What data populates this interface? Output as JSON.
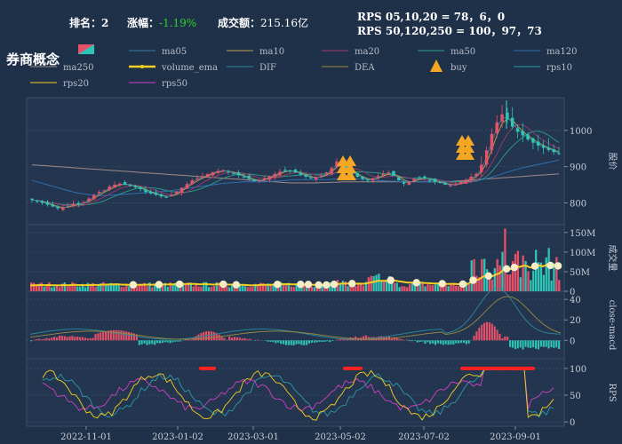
{
  "header": {
    "rank_label": "排名：",
    "rank_value": "2",
    "change_label": "涨幅：",
    "change_value": "-1.19%",
    "turnover_label": "成交额：",
    "turnover_value": "215.16亿",
    "rps_short": "RPS 05,10,20 = 78，6，0",
    "rps_long": "RPS 50,120,250 = 100，97，73"
  },
  "title": "券商概念",
  "colors": {
    "background": "#1f3049",
    "up": "#e8506a",
    "down": "#2ec4b6",
    "volume_ema": "#f5d020",
    "buy": "#f5a623"
  },
  "chart_data": {
    "type": "line",
    "legend": [
      {
        "name": "ma05",
        "color": "#3a7ca5",
        "kind": "line"
      },
      {
        "name": "ma10",
        "color": "#b9a44c",
        "kind": "line"
      },
      {
        "name": "ma20",
        "color": "#9b3c6e",
        "kind": "line"
      },
      {
        "name": "ma50",
        "color": "#2e9e8a",
        "kind": "line"
      },
      {
        "name": "ma120",
        "color": "#2f6fb0",
        "kind": "line"
      },
      {
        "name": "ma250",
        "color": "#a08a8a",
        "kind": "line"
      },
      {
        "name": "volume_ema",
        "color": "#f5d020",
        "kind": "dots"
      },
      {
        "name": "DIF",
        "color": "#2a8a9a",
        "kind": "line"
      },
      {
        "name": "DEA",
        "color": "#9a8a40",
        "kind": "line"
      },
      {
        "name": "buy",
        "color": "#f5a623",
        "kind": "triangle"
      },
      {
        "name": "rps10",
        "color": "#2a9aa8",
        "kind": "line"
      },
      {
        "name": "rps20",
        "color": "#f5d020",
        "kind": "line"
      },
      {
        "name": "rps50",
        "color": "#d040c0",
        "kind": "line"
      }
    ],
    "x_ticks": [
      "2022-11-01",
      "2023-01-02",
      "2023-03-01",
      "2023-05-02",
      "2023-07-02",
      "2023-09-01"
    ],
    "panels": [
      {
        "name": "price",
        "ylabel": "股价",
        "ticks": [
          "1000",
          "900",
          "800"
        ],
        "ylim": [
          740,
          1090
        ]
      },
      {
        "name": "volume",
        "ylabel": "成交量",
        "ticks": [
          "150M",
          "100M",
          "50M",
          "0"
        ],
        "ylim": [
          0,
          170
        ]
      },
      {
        "name": "macd",
        "ylabel": "close-macd",
        "ticks": [
          "40",
          "20",
          "0"
        ],
        "ylim": [
          -18,
          48
        ]
      },
      {
        "name": "rps",
        "ylabel": "RPS",
        "ticks": [
          "100",
          "50",
          "0"
        ],
        "ylim": [
          -8,
          118
        ]
      }
    ],
    "price_close": [
      808,
      805,
      800,
      795,
      790,
      785,
      787,
      792,
      798,
      796,
      802,
      812,
      822,
      830,
      835,
      845,
      850,
      853,
      850,
      848,
      843,
      838,
      830,
      826,
      822,
      818,
      816,
      822,
      832,
      842,
      852,
      862,
      868,
      874,
      880,
      885,
      888,
      890,
      885,
      880,
      876,
      870,
      866,
      860,
      862,
      868,
      874,
      880,
      886,
      890,
      888,
      884,
      878,
      872,
      868,
      870,
      876,
      884,
      896,
      914,
      905,
      890,
      880,
      872,
      866,
      862,
      868,
      874,
      880,
      884,
      875,
      862,
      853,
      858,
      866,
      870,
      867,
      862,
      858,
      855,
      850,
      848,
      852,
      858,
      864,
      872,
      880,
      905,
      945,
      990,
      1022,
      1044,
      1030,
      1010,
      996,
      986,
      975,
      966,
      958,
      952,
      946,
      940,
      936
    ],
    "ma250": [
      905,
      904,
      903,
      902,
      901,
      900,
      899,
      898,
      897,
      896,
      895,
      894,
      893,
      892,
      891,
      890,
      889,
      888,
      887,
      886,
      885,
      884,
      883,
      882,
      881,
      880,
      879,
      878,
      877,
      876,
      875,
      874,
      873,
      872,
      871,
      870,
      869,
      868,
      867,
      866,
      865,
      864,
      863,
      862,
      861,
      860,
      859,
      858,
      857,
      856,
      855,
      855,
      855,
      855,
      855,
      855,
      856,
      856,
      857,
      857,
      858,
      858,
      858,
      858,
      858,
      858,
      858,
      858,
      858,
      858,
      858,
      858,
      858,
      858,
      858,
      858,
      858,
      858,
      858,
      858,
      858,
      859,
      860,
      861,
      862,
      863,
      864,
      865,
      866,
      867,
      868,
      869,
      870,
      871,
      872,
      873,
      874,
      875,
      876,
      877,
      878,
      879,
      880
    ],
    "ma120": [
      862,
      858,
      854,
      850,
      846,
      842,
      838,
      834,
      830,
      827,
      825,
      823,
      821,
      820,
      820,
      821,
      822,
      823,
      824,
      825,
      826,
      827,
      828,
      829,
      830,
      831,
      832,
      834,
      836,
      838,
      840,
      842,
      844,
      846,
      848,
      850,
      852,
      854,
      855,
      856,
      857,
      858,
      858,
      858,
      858,
      858,
      859,
      860,
      861,
      862,
      863,
      864,
      864,
      864,
      864,
      864,
      864,
      864,
      865,
      866,
      867,
      867,
      867,
      866,
      865,
      864,
      863,
      862,
      861,
      860,
      860,
      859,
      858,
      858,
      858,
      858,
      858,
      858,
      858,
      858,
      858,
      858,
      858,
      858,
      859,
      860,
      862,
      864,
      867,
      871,
      875,
      880,
      885,
      889,
      893,
      897,
      900,
      903,
      906,
      909,
      912,
      915,
      918
    ],
    "buy_points": [
      {
        "x": 64,
        "y": 900
      },
      {
        "x": 65,
        "y": 900
      },
      {
        "x": 66,
        "y": 900
      },
      {
        "x": 90,
        "y": 955
      },
      {
        "x": 91,
        "y": 955
      }
    ]
  },
  "y_axis_labels": {
    "price": "股价",
    "volume": "成交量",
    "macd": "close-macd",
    "rps": "RPS"
  }
}
